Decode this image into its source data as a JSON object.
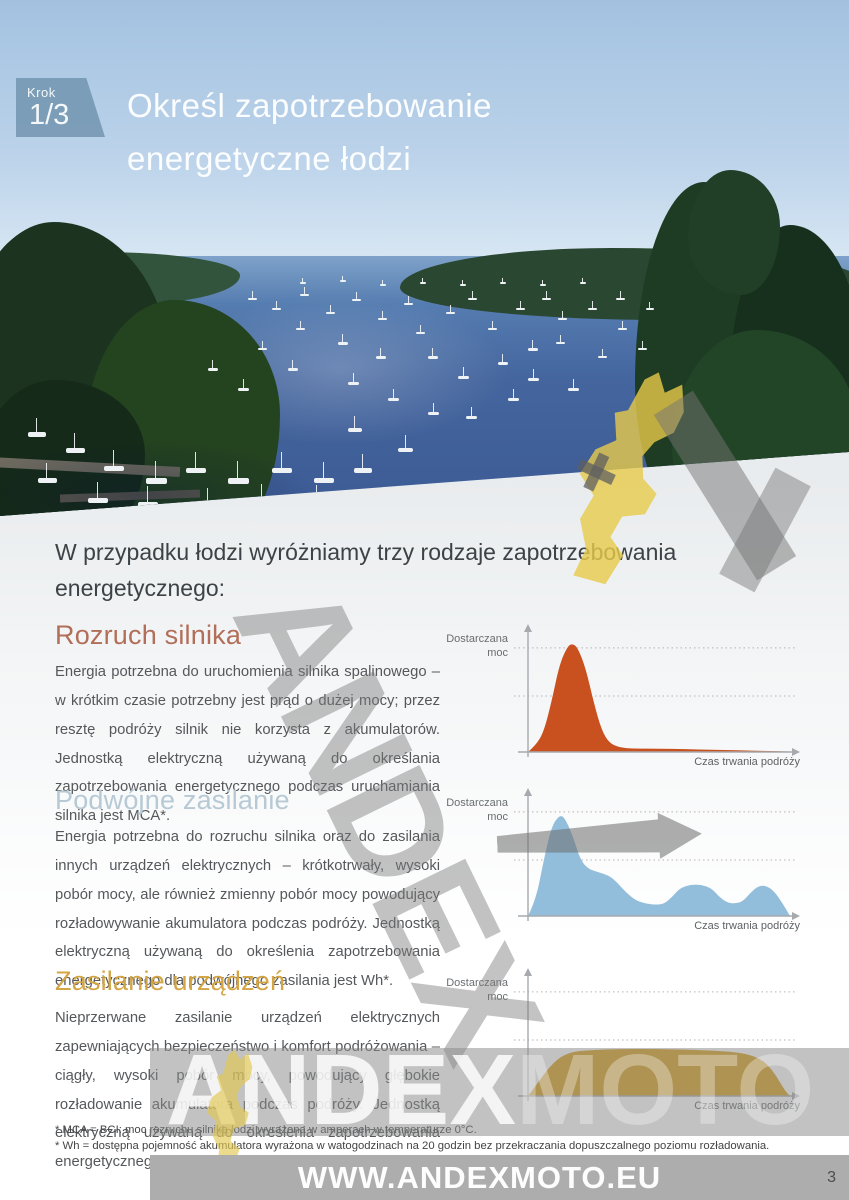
{
  "badge": {
    "label": "Krok",
    "value": "1/3"
  },
  "header": {
    "title_line1": "Określ zapotrzebowanie",
    "title_line2": "energetyczne łodzi"
  },
  "intro": "W przypadku łodzi wyróżniamy trzy rodzaje zapotrzebowania energetycznego:",
  "sections": [
    {
      "heading": "Rozruch silnika",
      "heading_color": "#b26e58",
      "body": "Energia potrzebna do uruchomienia silnika spalinowego – w krótkim czasie potrzebny jest prąd o dużej mocy; przez resztę podróży silnik nie korzysta z akumulatorów. Jednostką elektryczną używaną do określania zapotrzebowania energetycznego podczas uruchamiania silnika jest MCA*."
    },
    {
      "heading": "Podwójne zasilanie",
      "heading_color": "#b6c9d5",
      "body": "Energia potrzebna do rozruchu silnika oraz do zasilania innych urządzeń elektrycznych – krótkotrwały, wysoki pobór mocy, ale również zmienny pobór mocy powodujący rozładowywanie akumulatora podczas podróży. Jednostką elektryczną używaną do określenia zapotrzebowania energetycznego dla podwójnego zasilania jest Wh*."
    },
    {
      "heading": "Zasilanie urządzeń",
      "heading_color": "#d4a544",
      "body": "Nieprzerwane zasilanie urządzeń elektrycznych zapewniających bezpieczeństwo i komfort podróżowania – ciągły, wysoki pobór mocy, powodujący głębokie rozładowanie akumulatora podczas podróży. Jednostką elektryczną używaną do określenia zapotrzebowania energetycznego na zasilanie urządzeń jest Wh*."
    }
  ],
  "chart_data": [
    {
      "type": "area",
      "title": "Rozruch silnika",
      "ylabel": "Dostarczana moc",
      "xlabel": "Czas trwania podróży",
      "color": "#c8511f",
      "x_range": [
        0,
        100
      ],
      "y_range": [
        0,
        100
      ],
      "gridlines_y": [
        50,
        93
      ],
      "grid": true,
      "x": [
        0,
        3,
        6,
        9,
        12,
        15,
        17,
        19,
        22,
        25,
        28,
        31,
        35,
        40,
        50,
        60,
        70,
        80,
        90,
        100
      ],
      "y": [
        0,
        6,
        18,
        45,
        78,
        94,
        97,
        93,
        75,
        45,
        20,
        8,
        4,
        3,
        3,
        2.5,
        2,
        1.5,
        1,
        0.5
      ]
    },
    {
      "type": "area",
      "title": "Podwójne zasilanie",
      "ylabel": "Dostarczana moc",
      "xlabel": "Czas trwania podróży",
      "color": "#93bedb",
      "x_range": [
        0,
        100
      ],
      "y_range": [
        0,
        100
      ],
      "gridlines_y": [
        50,
        93
      ],
      "grid": true,
      "x": [
        0,
        3,
        6,
        9,
        12,
        14,
        17,
        20,
        23,
        27,
        31,
        34,
        37,
        41,
        45,
        49,
        52,
        55,
        58,
        62,
        66,
        70,
        73,
        76,
        79,
        82,
        85,
        88,
        91,
        94,
        97,
        100
      ],
      "y": [
        0,
        14,
        50,
        80,
        90,
        88,
        72,
        50,
        42,
        39,
        36,
        30,
        22,
        14,
        11,
        10,
        11,
        17,
        25,
        28,
        28,
        25,
        17,
        12,
        11,
        13,
        21,
        27,
        27,
        22,
        12,
        0
      ]
    },
    {
      "type": "area",
      "title": "Zasilanie urządzeń",
      "ylabel": "Dostarczana moc",
      "xlabel": "Czas trwania podróży",
      "color": "#d79d15",
      "x_range": [
        0,
        100
      ],
      "y_range": [
        0,
        100
      ],
      "gridlines_y": [
        50,
        93
      ],
      "grid": true,
      "x": [
        0,
        2,
        5,
        9,
        13,
        18,
        25,
        35,
        50,
        65,
        75,
        83,
        89,
        93,
        96,
        98,
        100
      ],
      "y": [
        0,
        6,
        16,
        28,
        36,
        40,
        41,
        42,
        42,
        41,
        40,
        38,
        33,
        24,
        13,
        5,
        0
      ]
    }
  ],
  "footnotes": [
    "* MCA = BCI: moc rozruchu silnika łodzi wyrażona w amperach w temperaturze 0°C.",
    "* Wh = dostępna pojemność akumulatora wyrażona w watogodzinach na 20 godzin bez przekraczania dopuszczalnego poziomu rozładowania."
  ],
  "watermark": {
    "logo_icon": "knight-chess-icon",
    "diagonal_text": "ANDEX",
    "band_text_primary": "ANDEX",
    "band_text_secondary": "MOTO",
    "website": "WWW.ANDEXMOTO.EU"
  },
  "footer": {
    "page_number": "3"
  }
}
